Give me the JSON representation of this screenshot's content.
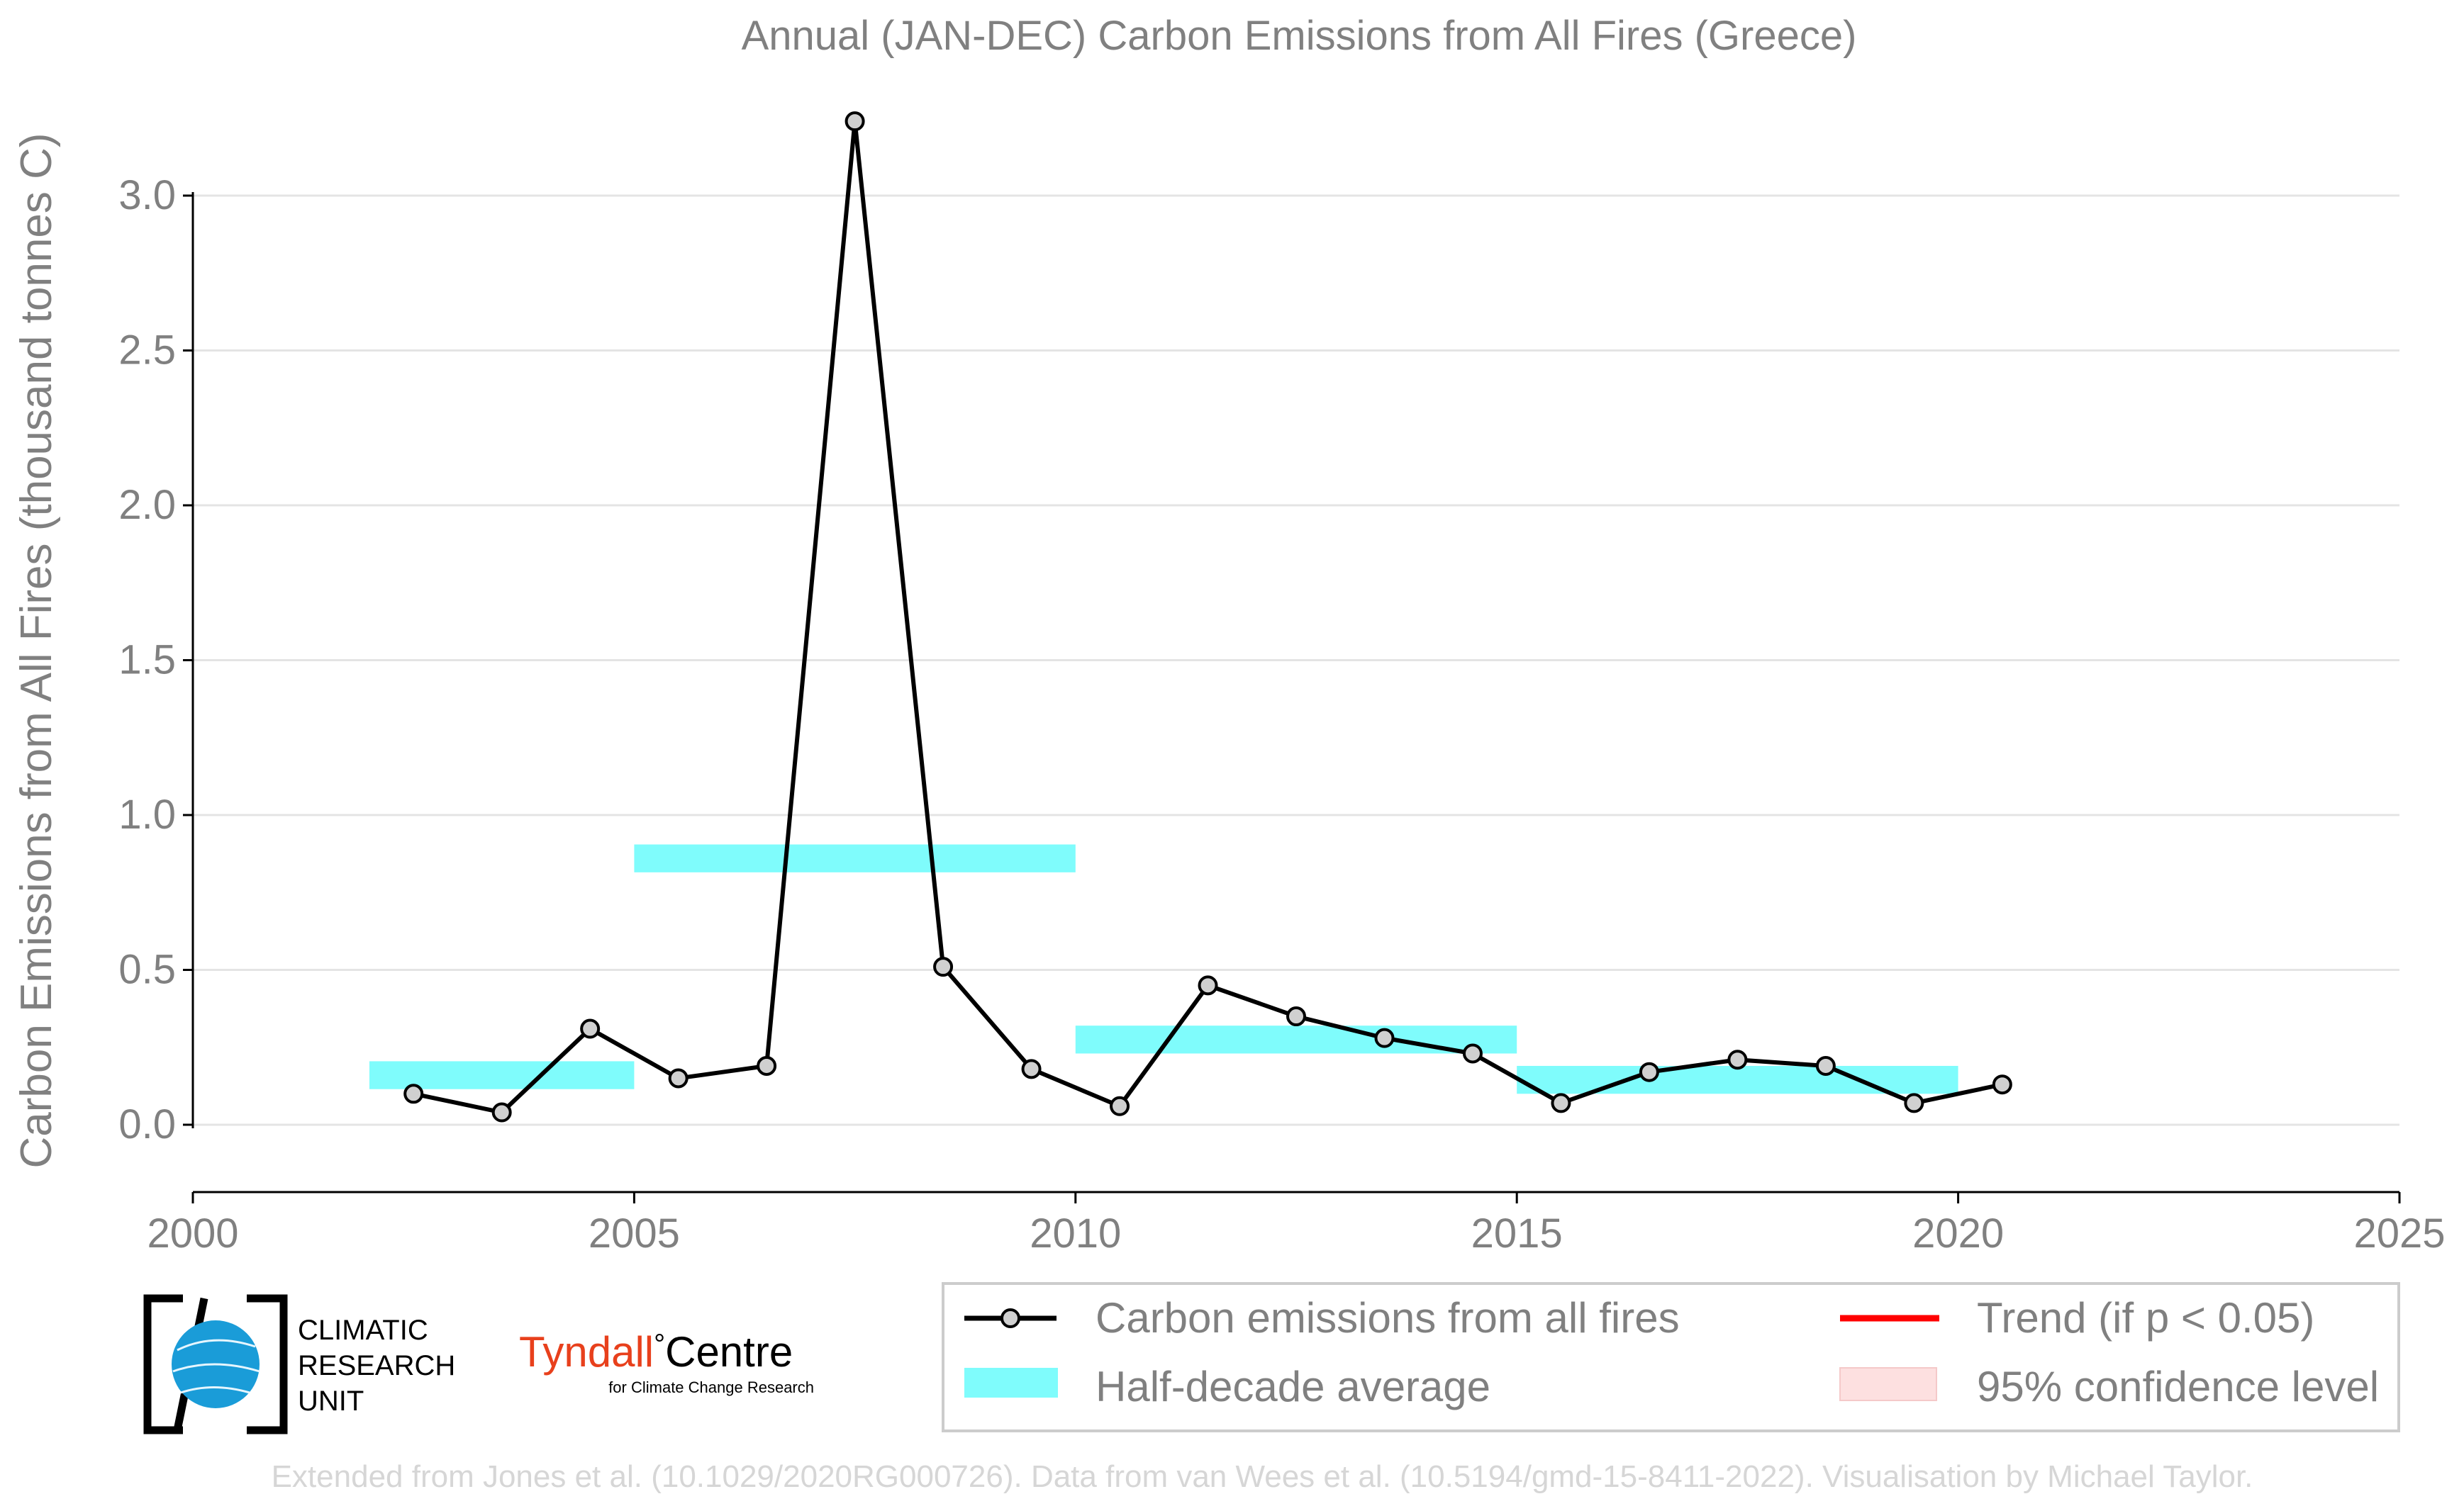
{
  "chart_data": {
    "type": "line",
    "title": "Annual (JAN-DEC) Carbon Emissions from All Fires (Greece)",
    "ylabel": "Carbon Emissions from All Fires (thousand tonnes C)",
    "xlabel": "",
    "xlim": [
      2000,
      2025
    ],
    "ylim": [
      -0.2,
      3.35
    ],
    "x_ticks": [
      2000,
      2005,
      2010,
      2015,
      2020,
      2025
    ],
    "y_ticks": [
      0.0,
      0.5,
      1.0,
      1.5,
      2.0,
      2.5,
      3.0
    ],
    "y_tick_labels": [
      "0.0",
      "0.5",
      "1.0",
      "1.5",
      "2.0",
      "2.5",
      "3.0"
    ],
    "grid": "horizontal",
    "series": [
      {
        "name": "Carbon emissions from all fires",
        "color": "#000000",
        "marker_fill": "#d0d0d0",
        "x": [
          2002.5,
          2003.5,
          2004.5,
          2005.5,
          2006.5,
          2007.5,
          2008.5,
          2009.5,
          2010.5,
          2011.5,
          2012.5,
          2013.5,
          2014.5,
          2015.5,
          2016.5,
          2017.5,
          2018.5,
          2019.5,
          2020.5
        ],
        "values": [
          0.1,
          0.04,
          0.31,
          0.15,
          0.19,
          3.24,
          0.51,
          0.18,
          0.06,
          0.45,
          0.35,
          0.28,
          0.23,
          0.07,
          0.17,
          0.21,
          0.19,
          0.07,
          0.13
        ]
      }
    ],
    "half_decade_average": {
      "name": "Half-decade average",
      "color": "#7ffcfc",
      "segments": [
        {
          "x_start": 2002,
          "x_end": 2005,
          "value": 0.16
        },
        {
          "x_start": 2005,
          "x_end": 2010,
          "value": 0.86
        },
        {
          "x_start": 2010,
          "x_end": 2015,
          "value": 0.275
        },
        {
          "x_start": 2015,
          "x_end": 2020,
          "value": 0.145
        }
      ],
      "band_half_height": 0.045
    },
    "legend": {
      "placement": "bottom-right",
      "entries": [
        {
          "label": "Carbon emissions from all fires",
          "kind": "line-marker",
          "color": "#000000"
        },
        {
          "label": "Trend (if p < 0.05)",
          "kind": "line",
          "color": "#ff0000"
        },
        {
          "label": "Half-decade average",
          "kind": "patch",
          "color": "#7ffcfc"
        },
        {
          "label": "95% confidence level",
          "kind": "patch",
          "color": "#fde0e0"
        }
      ]
    }
  },
  "logos": {
    "cru": {
      "line1": "CLIMATIC",
      "line2": "RESEARCH",
      "line3": "UNIT",
      "globe_color": "#1a9cd8"
    },
    "tyndall": {
      "name_part1": "Tyndall",
      "degree": "°",
      "name_part2": "Centre",
      "subtitle": "for Climate Change Research",
      "color": "#e8401c"
    }
  },
  "footer": "Extended from Jones et al. (10.1029/2020RG000726). Data from van Wees et al. (10.5194/gmd-15-8411-2022). Visualisation by Michael Taylor."
}
